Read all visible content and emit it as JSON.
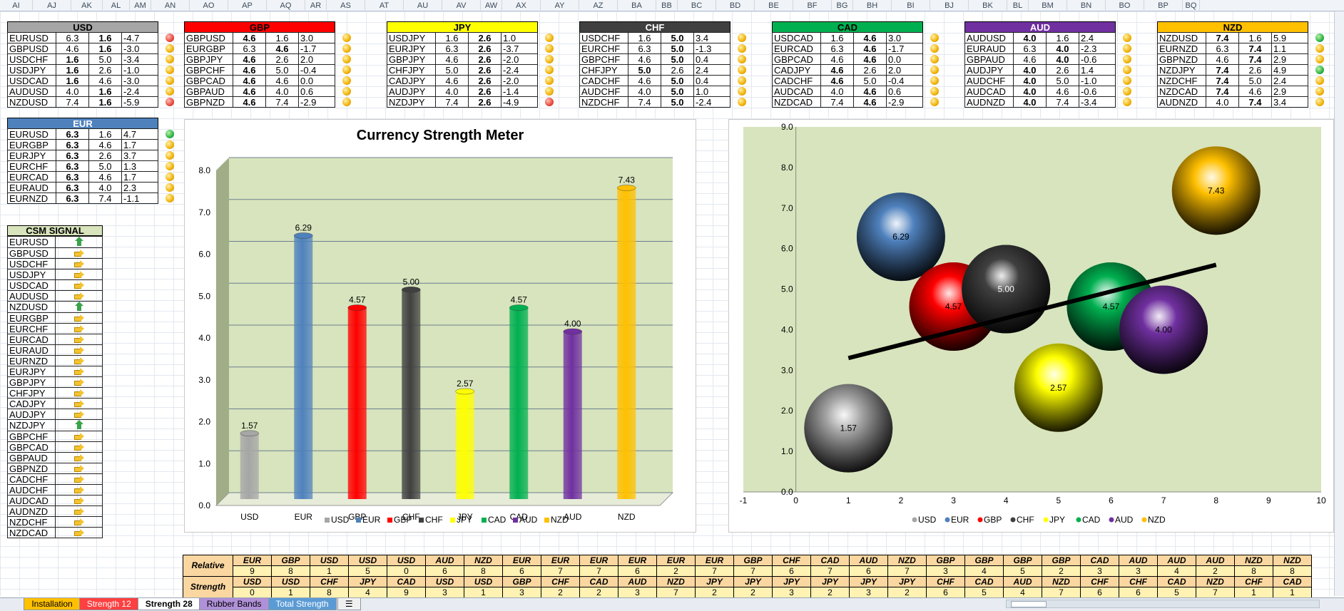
{
  "columns": [
    "AI",
    "AJ",
    "AK",
    "AL",
    "AM",
    "AN",
    "AO",
    "AP",
    "AQ",
    "AR",
    "AS",
    "AT",
    "AU",
    "AV",
    "AW",
    "AX",
    "AY",
    "AZ",
    "BA",
    "BB",
    "BC",
    "BD",
    "BE",
    "BF",
    "BG",
    "BH",
    "BI",
    "BJ",
    "BK",
    "BL",
    "BM",
    "BN",
    "BO",
    "BP",
    "BQ"
  ],
  "currency_blocks": [
    {
      "name": "USD",
      "header_color": "#a6a6a6",
      "rows": [
        {
          "pair": "EURUSD",
          "a": "6.3",
          "b": "1.6",
          "c": "-4.7",
          "dot": "r",
          "bold": "b"
        },
        {
          "pair": "GBPUSD",
          "a": "4.6",
          "b": "1.6",
          "c": "-3.0",
          "dot": "y",
          "bold": "b"
        },
        {
          "pair": "USDCHF",
          "a": "1.6",
          "b": "5.0",
          "c": "-3.4",
          "dot": "y",
          "bold": "a"
        },
        {
          "pair": "USDJPY",
          "a": "1.6",
          "b": "2.6",
          "c": "-1.0",
          "dot": "y",
          "bold": "a"
        },
        {
          "pair": "USDCAD",
          "a": "1.6",
          "b": "4.6",
          "c": "-3.0",
          "dot": "y",
          "bold": "a"
        },
        {
          "pair": "AUDUSD",
          "a": "4.0",
          "b": "1.6",
          "c": "-2.4",
          "dot": "y",
          "bold": "b"
        },
        {
          "pair": "NZDUSD",
          "a": "7.4",
          "b": "1.6",
          "c": "-5.9",
          "dot": "r",
          "bold": "b"
        }
      ]
    },
    {
      "name": "GBP",
      "header_color": "#ff0000",
      "rows": [
        {
          "pair": "GBPUSD",
          "a": "4.6",
          "b": "1.6",
          "c": "3.0",
          "dot": "y",
          "bold": "a"
        },
        {
          "pair": "EURGBP",
          "a": "6.3",
          "b": "4.6",
          "c": "-1.7",
          "dot": "y",
          "bold": "b"
        },
        {
          "pair": "GBPJPY",
          "a": "4.6",
          "b": "2.6",
          "c": "2.0",
          "dot": "y",
          "bold": "a"
        },
        {
          "pair": "GBPCHF",
          "a": "4.6",
          "b": "5.0",
          "c": "-0.4",
          "dot": "y",
          "bold": "a"
        },
        {
          "pair": "GBPCAD",
          "a": "4.6",
          "b": "4.6",
          "c": "0.0",
          "dot": "y",
          "bold": "a"
        },
        {
          "pair": "GBPAUD",
          "a": "4.6",
          "b": "4.0",
          "c": "0.6",
          "dot": "y",
          "bold": "a"
        },
        {
          "pair": "GBPNZD",
          "a": "4.6",
          "b": "7.4",
          "c": "-2.9",
          "dot": "y",
          "bold": "a"
        }
      ]
    },
    {
      "name": "JPY",
      "header_color": "#ffff00",
      "rows": [
        {
          "pair": "USDJPY",
          "a": "1.6",
          "b": "2.6",
          "c": "1.0",
          "dot": "y",
          "bold": "b"
        },
        {
          "pair": "EURJPY",
          "a": "6.3",
          "b": "2.6",
          "c": "-3.7",
          "dot": "y",
          "bold": "b"
        },
        {
          "pair": "GBPJPY",
          "a": "4.6",
          "b": "2.6",
          "c": "-2.0",
          "dot": "y",
          "bold": "b"
        },
        {
          "pair": "CHFJPY",
          "a": "5.0",
          "b": "2.6",
          "c": "-2.4",
          "dot": "y",
          "bold": "b"
        },
        {
          "pair": "CADJPY",
          "a": "4.6",
          "b": "2.6",
          "c": "-2.0",
          "dot": "y",
          "bold": "b"
        },
        {
          "pair": "AUDJPY",
          "a": "4.0",
          "b": "2.6",
          "c": "-1.4",
          "dot": "y",
          "bold": "b"
        },
        {
          "pair": "NZDJPY",
          "a": "7.4",
          "b": "2.6",
          "c": "-4.9",
          "dot": "r",
          "bold": "b"
        }
      ]
    },
    {
      "name": "CHF",
      "header_color": "#404040",
      "rows": [
        {
          "pair": "USDCHF",
          "a": "1.6",
          "b": "5.0",
          "c": "3.4",
          "dot": "y",
          "bold": "b"
        },
        {
          "pair": "EURCHF",
          "a": "6.3",
          "b": "5.0",
          "c": "-1.3",
          "dot": "y",
          "bold": "b"
        },
        {
          "pair": "GBPCHF",
          "a": "4.6",
          "b": "5.0",
          "c": "0.4",
          "dot": "y",
          "bold": "b"
        },
        {
          "pair": "CHFJPY",
          "a": "5.0",
          "b": "2.6",
          "c": "2.4",
          "dot": "y",
          "bold": "a"
        },
        {
          "pair": "CADCHF",
          "a": "4.6",
          "b": "5.0",
          "c": "0.4",
          "dot": "y",
          "bold": "b"
        },
        {
          "pair": "AUDCHF",
          "a": "4.0",
          "b": "5.0",
          "c": "1.0",
          "dot": "y",
          "bold": "b"
        },
        {
          "pair": "NZDCHF",
          "a": "7.4",
          "b": "5.0",
          "c": "-2.4",
          "dot": "y",
          "bold": "b"
        }
      ]
    },
    {
      "name": "CAD",
      "header_color": "#00b050",
      "rows": [
        {
          "pair": "USDCAD",
          "a": "1.6",
          "b": "4.6",
          "c": "3.0",
          "dot": "y",
          "bold": "b"
        },
        {
          "pair": "EURCAD",
          "a": "6.3",
          "b": "4.6",
          "c": "-1.7",
          "dot": "y",
          "bold": "b"
        },
        {
          "pair": "GBPCAD",
          "a": "4.6",
          "b": "4.6",
          "c": "0.0",
          "dot": "y",
          "bold": "b"
        },
        {
          "pair": "CADJPY",
          "a": "4.6",
          "b": "2.6",
          "c": "2.0",
          "dot": "y",
          "bold": "a"
        },
        {
          "pair": "CADCHF",
          "a": "4.6",
          "b": "5.0",
          "c": "-0.4",
          "dot": "y",
          "bold": "a"
        },
        {
          "pair": "AUDCAD",
          "a": "4.0",
          "b": "4.6",
          "c": "0.6",
          "dot": "y",
          "bold": "b"
        },
        {
          "pair": "NZDCAD",
          "a": "7.4",
          "b": "4.6",
          "c": "-2.9",
          "dot": "y",
          "bold": "b"
        }
      ]
    },
    {
      "name": "AUD",
      "header_color": "#7030a0",
      "rows": [
        {
          "pair": "AUDUSD",
          "a": "4.0",
          "b": "1.6",
          "c": "2.4",
          "dot": "y",
          "bold": "a"
        },
        {
          "pair": "EURAUD",
          "a": "6.3",
          "b": "4.0",
          "c": "-2.3",
          "dot": "y",
          "bold": "b"
        },
        {
          "pair": "GBPAUD",
          "a": "4.6",
          "b": "4.0",
          "c": "-0.6",
          "dot": "y",
          "bold": "b"
        },
        {
          "pair": "AUDJPY",
          "a": "4.0",
          "b": "2.6",
          "c": "1.4",
          "dot": "y",
          "bold": "a"
        },
        {
          "pair": "AUDCHF",
          "a": "4.0",
          "b": "5.0",
          "c": "-1.0",
          "dot": "y",
          "bold": "a"
        },
        {
          "pair": "AUDCAD",
          "a": "4.0",
          "b": "4.6",
          "c": "-0.6",
          "dot": "y",
          "bold": "a"
        },
        {
          "pair": "AUDNZD",
          "a": "4.0",
          "b": "7.4",
          "c": "-3.4",
          "dot": "y",
          "bold": "a"
        }
      ]
    },
    {
      "name": "NZD",
      "header_color": "#ffc000",
      "rows": [
        {
          "pair": "NZDUSD",
          "a": "7.4",
          "b": "1.6",
          "c": "5.9",
          "dot": "g",
          "bold": "a"
        },
        {
          "pair": "EURNZD",
          "a": "6.3",
          "b": "7.4",
          "c": "1.1",
          "dot": "y",
          "bold": "b"
        },
        {
          "pair": "GBPNZD",
          "a": "4.6",
          "b": "7.4",
          "c": "2.9",
          "dot": "y",
          "bold": "b"
        },
        {
          "pair": "NZDJPY",
          "a": "7.4",
          "b": "2.6",
          "c": "4.9",
          "dot": "g",
          "bold": "a"
        },
        {
          "pair": "NZDCHF",
          "a": "7.4",
          "b": "5.0",
          "c": "2.4",
          "dot": "y",
          "bold": "a"
        },
        {
          "pair": "NZDCAD",
          "a": "7.4",
          "b": "4.6",
          "c": "2.9",
          "dot": "y",
          "bold": "a"
        },
        {
          "pair": "AUDNZD",
          "a": "4.0",
          "b": "7.4",
          "c": "3.4",
          "dot": "y",
          "bold": "b"
        }
      ]
    },
    {
      "name": "EUR",
      "header_color": "#4f81bd",
      "rows": [
        {
          "pair": "EURUSD",
          "a": "6.3",
          "b": "1.6",
          "c": "4.7",
          "dot": "g",
          "bold": "a"
        },
        {
          "pair": "EURGBP",
          "a": "6.3",
          "b": "4.6",
          "c": "1.7",
          "dot": "y",
          "bold": "a"
        },
        {
          "pair": "EURJPY",
          "a": "6.3",
          "b": "2.6",
          "c": "3.7",
          "dot": "y",
          "bold": "a"
        },
        {
          "pair": "EURCHF",
          "a": "6.3",
          "b": "5.0",
          "c": "1.3",
          "dot": "y",
          "bold": "a"
        },
        {
          "pair": "EURCAD",
          "a": "6.3",
          "b": "4.6",
          "c": "1.7",
          "dot": "y",
          "bold": "a"
        },
        {
          "pair": "EURAUD",
          "a": "6.3",
          "b": "4.0",
          "c": "2.3",
          "dot": "y",
          "bold": "a"
        },
        {
          "pair": "EURNZD",
          "a": "6.3",
          "b": "7.4",
          "c": "-1.1",
          "dot": "y",
          "bold": "a"
        }
      ]
    }
  ],
  "csm_signal": {
    "title": "CSM SIGNAL",
    "rows": [
      {
        "pair": "EURUSD",
        "signal": "up"
      },
      {
        "pair": "GBPUSD",
        "signal": "right"
      },
      {
        "pair": "USDCHF",
        "signal": "right"
      },
      {
        "pair": "USDJPY",
        "signal": "right"
      },
      {
        "pair": "USDCAD",
        "signal": "right"
      },
      {
        "pair": "AUDUSD",
        "signal": "right"
      },
      {
        "pair": "NZDUSD",
        "signal": "up"
      },
      {
        "pair": "EURGBP",
        "signal": "right"
      },
      {
        "pair": "EURCHF",
        "signal": "right"
      },
      {
        "pair": "EURCAD",
        "signal": "right"
      },
      {
        "pair": "EURAUD",
        "signal": "right"
      },
      {
        "pair": "EURNZD",
        "signal": "right"
      },
      {
        "pair": "EURJPY",
        "signal": "right"
      },
      {
        "pair": "GBPJPY",
        "signal": "right"
      },
      {
        "pair": "CHFJPY",
        "signal": "right"
      },
      {
        "pair": "CADJPY",
        "signal": "right"
      },
      {
        "pair": "AUDJPY",
        "signal": "right"
      },
      {
        "pair": "NZDJPY",
        "signal": "up"
      },
      {
        "pair": "GBPCHF",
        "signal": "right"
      },
      {
        "pair": "GBPCAD",
        "signal": "right"
      },
      {
        "pair": "GBPAUD",
        "signal": "right"
      },
      {
        "pair": "GBPNZD",
        "signal": "right"
      },
      {
        "pair": "CADCHF",
        "signal": "right"
      },
      {
        "pair": "AUDCHF",
        "signal": "right"
      },
      {
        "pair": "AUDCAD",
        "signal": "right"
      },
      {
        "pair": "AUDNZD",
        "signal": "right"
      },
      {
        "pair": "NZDCHF",
        "signal": "right"
      },
      {
        "pair": "NZDCAD",
        "signal": "right"
      }
    ]
  },
  "chart_data": [
    {
      "type": "bar",
      "title": "Currency Strength Meter",
      "categories": [
        "USD",
        "EUR",
        "GBP",
        "CHF",
        "JPY",
        "CAD",
        "AUD",
        "NZD"
      ],
      "values": [
        1.57,
        6.29,
        4.57,
        5.0,
        2.57,
        4.57,
        4.0,
        7.43
      ],
      "value_labels": [
        "1.57",
        "6.29",
        "4.57",
        "5.00",
        "2.57",
        "4.57",
        "4.00",
        "7.43"
      ],
      "colors": [
        "#a6a6a6",
        "#4f81bd",
        "#ff0000",
        "#404040",
        "#ffff00",
        "#00b050",
        "#7030a0",
        "#ffc000"
      ],
      "ylim": [
        0,
        8
      ],
      "yticks": [
        "0.0",
        "1.0",
        "2.0",
        "3.0",
        "4.0",
        "5.0",
        "6.0",
        "7.0",
        "8.0"
      ],
      "legend": "bottom",
      "grid": true
    },
    {
      "type": "scatter",
      "points": [
        {
          "name": "USD",
          "x": 1,
          "y": 1.57,
          "label": "1.57",
          "color": "#a6a6a6"
        },
        {
          "name": "EUR",
          "x": 2,
          "y": 6.29,
          "label": "6.29",
          "color": "#4f81bd"
        },
        {
          "name": "GBP",
          "x": 3,
          "y": 4.57,
          "label": "4.57",
          "color": "#ff0000"
        },
        {
          "name": "CHF",
          "x": 4,
          "y": 5.0,
          "label": "5.00",
          "color": "#404040"
        },
        {
          "name": "JPY",
          "x": 5,
          "y": 2.57,
          "label": "2.57",
          "color": "#ffff00"
        },
        {
          "name": "CAD",
          "x": 6,
          "y": 4.57,
          "label": "4.57",
          "color": "#00b050"
        },
        {
          "name": "AUD",
          "x": 7,
          "y": 4.0,
          "label": "4.00",
          "color": "#7030a0"
        },
        {
          "name": "NZD",
          "x": 8,
          "y": 7.43,
          "label": "7.43",
          "color": "#ffc000"
        }
      ],
      "trendline": {
        "x1": 1,
        "y1": 3.3,
        "x2": 8,
        "y2": 5.6
      },
      "xlim": [
        -1,
        10
      ],
      "ylim": [
        0,
        9
      ],
      "xticks": [
        "-1",
        "0",
        "1",
        "2",
        "3",
        "4",
        "5",
        "6",
        "7",
        "8",
        "9",
        "10"
      ],
      "yticks": [
        "0.0",
        "1.0",
        "2.0",
        "3.0",
        "4.0",
        "5.0",
        "6.0",
        "7.0",
        "8.0",
        "9.0"
      ],
      "legend": "bottom"
    }
  ],
  "bottom_table": {
    "label_top": "Relative",
    "label_bottom": "Strength",
    "cols": [
      [
        "EUR",
        "9",
        "USD",
        "0"
      ],
      [
        "GBP",
        "8",
        "USD",
        "1"
      ],
      [
        "USD",
        "1",
        "CHF",
        "8"
      ],
      [
        "USD",
        "5",
        "JPY",
        "4"
      ],
      [
        "USD",
        "0",
        "CAD",
        "9"
      ],
      [
        "AUD",
        "6",
        "USD",
        "3"
      ],
      [
        "NZD",
        "8",
        "USD",
        "1"
      ],
      [
        "EUR",
        "6",
        "GBP",
        "3"
      ],
      [
        "EUR",
        "7",
        "CHF",
        "2"
      ],
      [
        "EUR",
        "7",
        "CAD",
        "2"
      ],
      [
        "EUR",
        "6",
        "AUD",
        "3"
      ],
      [
        "EUR",
        "2",
        "NZD",
        "7"
      ],
      [
        "EUR",
        "7",
        "JPY",
        "2"
      ],
      [
        "GBP",
        "7",
        "JPY",
        "2"
      ],
      [
        "CHF",
        "6",
        "JPY",
        "3"
      ],
      [
        "CAD",
        "7",
        "JPY",
        "2"
      ],
      [
        "AUD",
        "6",
        "JPY",
        "3"
      ],
      [
        "NZD",
        "7",
        "JPY",
        "2"
      ],
      [
        "GBP",
        "3",
        "CHF",
        "6"
      ],
      [
        "GBP",
        "4",
        "CAD",
        "5"
      ],
      [
        "GBP",
        "5",
        "AUD",
        "4"
      ],
      [
        "GBP",
        "2",
        "NZD",
        "7"
      ],
      [
        "CAD",
        "3",
        "CHF",
        "6"
      ],
      [
        "AUD",
        "3",
        "CHF",
        "6"
      ],
      [
        "AUD",
        "4",
        "CAD",
        "5"
      ],
      [
        "AUD",
        "2",
        "NZD",
        "7"
      ],
      [
        "NZD",
        "8",
        "CHF",
        "1"
      ],
      [
        "NZD",
        "8",
        "CAD",
        "1"
      ]
    ]
  },
  "tabs": [
    {
      "label": "Installation",
      "color": "#ffc000",
      "active": false
    },
    {
      "label": "Strength 12",
      "color": "#ff4040",
      "active": false
    },
    {
      "label": "Strength 28",
      "color": "#ffffff",
      "active": true
    },
    {
      "label": "Rubber Bands",
      "color": "#b090d8",
      "active": false
    },
    {
      "label": "Total Strength",
      "color": "#5b9bd5",
      "active": false
    }
  ]
}
